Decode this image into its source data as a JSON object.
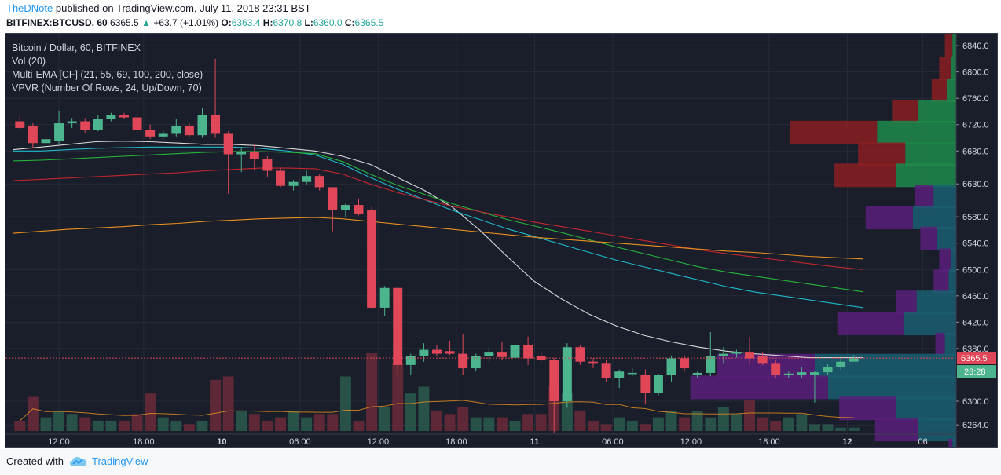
{
  "header": {
    "author": "TheDNote",
    "published_text": "published on TradingView.com, July 11, 2018 23:31 BST",
    "symbol": "BITFINEX:BTCUSD, 60",
    "last": "6365.5",
    "change": "+63.7 (+1.01%)",
    "o_label": "O:",
    "o_val": "6363.4",
    "h_label": "H:",
    "h_val": "6370.8",
    "l_label": "L:",
    "l_val": "6360.0",
    "c_label": "C:",
    "c_val": "6365.5"
  },
  "legend": {
    "title": "Bitcoin / Dollar, 60, BITFINEX",
    "vol": "Vol (20)",
    "ema": "Multi-EMA [CF] (21, 55, 69, 100, 200, close)",
    "vpvr": "VPVR (Number Of Rows, 24, Up/Down, 70)"
  },
  "footer": {
    "created_with": "Created with",
    "brand": "TradingView"
  },
  "colors": {
    "up": "#4db58d",
    "down": "#e0485a",
    "bg": "#1a1e2b",
    "ema21": "#d9d9d9",
    "ema55": "#1fb8c9",
    "ema69": "#28b33a",
    "ema100": "#c4262e",
    "ema200": "#e8901e",
    "price_line": "#e0485a",
    "vpvr_up": "#1e8a4a",
    "vpvr_down": "#8a1e22"
  },
  "chart_data": {
    "type": "candlestick",
    "symbol": "BITFINEX:BTCUSD",
    "interval": "60",
    "y_ticks": [
      "6840.0",
      "6800.0",
      "6760.0",
      "6720.0",
      "6680.0",
      "6630.0",
      "6580.0",
      "6540.0",
      "6500.0",
      "6460.0",
      "6420.0",
      "6380.0",
      "6300.0",
      "6264.0"
    ],
    "x_ticks": [
      "12:00",
      "18:00",
      "10",
      "06:00",
      "12:00",
      "18:00",
      "11",
      "06:00",
      "12:00",
      "18:00",
      "12",
      "06"
    ],
    "last_price_label": "6365.5",
    "countdown_label": "28:28",
    "ylim": [
      6238,
      6858
    ],
    "candles": [
      {
        "o": 6725,
        "h": 6735,
        "l": 6712,
        "c": 6715
      },
      {
        "o": 6718,
        "h": 6722,
        "l": 6685,
        "c": 6692
      },
      {
        "o": 6692,
        "h": 6700,
        "l": 6685,
        "c": 6698
      },
      {
        "o": 6695,
        "h": 6740,
        "l": 6690,
        "c": 6722
      },
      {
        "o": 6722,
        "h": 6730,
        "l": 6715,
        "c": 6725
      },
      {
        "o": 6725,
        "h": 6730,
        "l": 6708,
        "c": 6712
      },
      {
        "o": 6712,
        "h": 6735,
        "l": 6710,
        "c": 6728
      },
      {
        "o": 6728,
        "h": 6738,
        "l": 6725,
        "c": 6735
      },
      {
        "o": 6735,
        "h": 6738,
        "l": 6728,
        "c": 6731
      },
      {
        "o": 6731,
        "h": 6740,
        "l": 6705,
        "c": 6712
      },
      {
        "o": 6712,
        "h": 6720,
        "l": 6698,
        "c": 6702
      },
      {
        "o": 6702,
        "h": 6712,
        "l": 6698,
        "c": 6706
      },
      {
        "o": 6706,
        "h": 6728,
        "l": 6702,
        "c": 6718
      },
      {
        "o": 6718,
        "h": 6722,
        "l": 6700,
        "c": 6704
      },
      {
        "o": 6704,
        "h": 6745,
        "l": 6700,
        "c": 6735
      },
      {
        "o": 6735,
        "h": 6820,
        "l": 6700,
        "c": 6706
      },
      {
        "o": 6706,
        "h": 6710,
        "l": 6615,
        "c": 6675
      },
      {
        "o": 6675,
        "h": 6686,
        "l": 6648,
        "c": 6678
      },
      {
        "o": 6678,
        "h": 6690,
        "l": 6650,
        "c": 6668
      },
      {
        "o": 6668,
        "h": 6672,
        "l": 6640,
        "c": 6650
      },
      {
        "o": 6650,
        "h": 6655,
        "l": 6625,
        "c": 6627
      },
      {
        "o": 6627,
        "h": 6636,
        "l": 6620,
        "c": 6633
      },
      {
        "o": 6633,
        "h": 6650,
        "l": 6628,
        "c": 6642
      },
      {
        "o": 6642,
        "h": 6645,
        "l": 6620,
        "c": 6625
      },
      {
        "o": 6625,
        "h": 6625,
        "l": 6558,
        "c": 6590
      },
      {
        "o": 6590,
        "h": 6600,
        "l": 6580,
        "c": 6598
      },
      {
        "o": 6598,
        "h": 6608,
        "l": 6582,
        "c": 6585
      },
      {
        "o": 6590,
        "h": 6595,
        "l": 6440,
        "c": 6442
      },
      {
        "o": 6442,
        "h": 6475,
        "l": 6430,
        "c": 6472
      },
      {
        "o": 6472,
        "h": 6472,
        "l": 6340,
        "c": 6355
      },
      {
        "o": 6355,
        "h": 6372,
        "l": 6340,
        "c": 6368
      },
      {
        "o": 6368,
        "h": 6388,
        "l": 6360,
        "c": 6378
      },
      {
        "o": 6378,
        "h": 6386,
        "l": 6368,
        "c": 6372
      },
      {
        "o": 6376,
        "h": 6392,
        "l": 6370,
        "c": 6372
      },
      {
        "o": 6372,
        "h": 6402,
        "l": 6340,
        "c": 6350
      },
      {
        "o": 6350,
        "h": 6372,
        "l": 6345,
        "c": 6368
      },
      {
        "o": 6368,
        "h": 6382,
        "l": 6360,
        "c": 6375
      },
      {
        "o": 6375,
        "h": 6390,
        "l": 6362,
        "c": 6367
      },
      {
        "o": 6366,
        "h": 6405,
        "l": 6360,
        "c": 6385
      },
      {
        "o": 6385,
        "h": 6398,
        "l": 6355,
        "c": 6365
      },
      {
        "o": 6368,
        "h": 6375,
        "l": 6358,
        "c": 6362
      },
      {
        "o": 6362,
        "h": 6365,
        "l": 6252,
        "c": 6300
      },
      {
        "o": 6300,
        "h": 6388,
        "l": 6290,
        "c": 6382
      },
      {
        "o": 6382,
        "h": 6385,
        "l": 6355,
        "c": 6360
      },
      {
        "o": 6360,
        "h": 6365,
        "l": 6350,
        "c": 6358
      },
      {
        "o": 6358,
        "h": 6362,
        "l": 6330,
        "c": 6335
      },
      {
        "o": 6335,
        "h": 6348,
        "l": 6320,
        "c": 6345
      },
      {
        "o": 6342,
        "h": 6350,
        "l": 6338,
        "c": 6343
      },
      {
        "o": 6340,
        "h": 6348,
        "l": 6295,
        "c": 6312
      },
      {
        "o": 6312,
        "h": 6342,
        "l": 6308,
        "c": 6340
      },
      {
        "o": 6340,
        "h": 6368,
        "l": 6330,
        "c": 6365
      },
      {
        "o": 6365,
        "h": 6370,
        "l": 6345,
        "c": 6350
      },
      {
        "o": 6340,
        "h": 6345,
        "l": 6335,
        "c": 6343
      },
      {
        "o": 6343,
        "h": 6405,
        "l": 6338,
        "c": 6368
      },
      {
        "o": 6368,
        "h": 6382,
        "l": 6358,
        "c": 6372
      },
      {
        "o": 6372,
        "h": 6378,
        "l": 6366,
        "c": 6375
      },
      {
        "o": 6375,
        "h": 6398,
        "l": 6358,
        "c": 6365
      },
      {
        "o": 6368,
        "h": 6375,
        "l": 6355,
        "c": 6358
      },
      {
        "o": 6358,
        "h": 6362,
        "l": 6335,
        "c": 6340
      },
      {
        "o": 6340,
        "h": 6345,
        "l": 6335,
        "c": 6342
      },
      {
        "o": 6340,
        "h": 6352,
        "l": 6335,
        "c": 6344
      },
      {
        "o": 6340,
        "h": 6346,
        "l": 6298,
        "c": 6344
      },
      {
        "o": 6344,
        "h": 6356,
        "l": 6340,
        "c": 6352
      },
      {
        "o": 6352,
        "h": 6368,
        "l": 6348,
        "c": 6360
      },
      {
        "o": 6360,
        "h": 6370,
        "l": 6360,
        "c": 6365
      }
    ],
    "volume": [
      0.3,
      1.0,
      0.4,
      0.6,
      0.5,
      0.4,
      0.3,
      0.3,
      0.3,
      0.5,
      1.1,
      0.4,
      0.3,
      0.2,
      0.3,
      1.5,
      1.6,
      0.6,
      0.5,
      0.3,
      0.4,
      0.6,
      0.4,
      0.5,
      0.5,
      1.6,
      0.3,
      2.3,
      0.7,
      2.0,
      1.1,
      1.3,
      0.6,
      0.5,
      0.7,
      0.4,
      0.4,
      0.4,
      0.3,
      0.5,
      0.5,
      1.3,
      1.1,
      0.6,
      0.3,
      0.2,
      0.4,
      0.3,
      0.2,
      0.4,
      0.6,
      0.4,
      0.6,
      0.4,
      0.7,
      0.5,
      0.9,
      0.4,
      0.3,
      0.4,
      0.5,
      0.2,
      0.2,
      0.1,
      0.1
    ],
    "ema": [
      {
        "name": "EMA 21",
        "values": [
          6682,
          6686,
          6690,
          6694,
          6695,
          6694,
          6692,
          6690,
          6690,
          6688,
          6684,
          6680,
          6672,
          6660,
          6640,
          6620,
          6595,
          6560,
          6520,
          6482,
          6455,
          6432,
          6414,
          6400,
          6390,
          6382,
          6376,
          6372,
          6369,
          6366,
          6366,
          6366
        ]
      },
      {
        "name": "EMA 55",
        "values": [
          6680,
          6680,
          6682,
          6684,
          6685,
          6686,
          6686,
          6686,
          6686,
          6684,
          6680,
          6674,
          6660,
          6640,
          6622,
          6606,
          6590,
          6576,
          6562,
          6550,
          6538,
          6526,
          6514,
          6504,
          6494,
          6484,
          6474,
          6466,
          6460,
          6454,
          6448,
          6442
        ]
      },
      {
        "name": "EMA 69",
        "values": [
          6665,
          6666,
          6668,
          6670,
          6672,
          6674,
          6676,
          6678,
          6679,
          6679,
          6678,
          6676,
          6664,
          6645,
          6628,
          6614,
          6600,
          6588,
          6576,
          6566,
          6556,
          6545,
          6534,
          6524,
          6514,
          6504,
          6496,
          6490,
          6484,
          6478,
          6472,
          6466
        ]
      },
      {
        "name": "EMA 100",
        "values": [
          6635,
          6637,
          6639,
          6641,
          6643,
          6645,
          6647,
          6650,
          6652,
          6654,
          6654,
          6653,
          6645,
          6630,
          6617,
          6606,
          6596,
          6588,
          6580,
          6572,
          6565,
          6558,
          6551,
          6544,
          6537,
          6530,
          6524,
          6519,
          6514,
          6509,
          6504,
          6500
        ]
      },
      {
        "name": "EMA 200",
        "values": [
          6555,
          6558,
          6561,
          6563,
          6565,
          6568,
          6570,
          6573,
          6575,
          6577,
          6578,
          6579,
          6577,
          6573,
          6569,
          6565,
          6561,
          6557,
          6553,
          6549,
          6546,
          6543,
          6540,
          6537,
          6534,
          6531,
          6528,
          6526,
          6523,
          6520,
          6518,
          6516
        ]
      }
    ],
    "vpvr": [
      {
        "price": 6840,
        "up": 0.02,
        "down": 0.04
      },
      {
        "price": 6805,
        "up": 0.03,
        "down": 0.06
      },
      {
        "price": 6772,
        "up": 0.05,
        "down": 0.08
      },
      {
        "price": 6740,
        "up": 0.2,
        "down": 0.14
      },
      {
        "price": 6708,
        "up": 0.42,
        "down": 0.46
      },
      {
        "price": 6675,
        "up": 0.27,
        "down": 0.25
      },
      {
        "price": 6643,
        "up": 0.32,
        "down": 0.33
      },
      {
        "price": 6611,
        "up": 0.12,
        "down": 0.1
      },
      {
        "price": 6579,
        "up": 0.23,
        "down": 0.25
      },
      {
        "price": 6547,
        "up": 0.1,
        "down": 0.09
      },
      {
        "price": 6514,
        "up": 0.03,
        "down": 0.06
      },
      {
        "price": 6482,
        "up": 0.04,
        "down": 0.08
      },
      {
        "price": 6450,
        "up": 0.21,
        "down": 0.11
      },
      {
        "price": 6418,
        "up": 0.28,
        "down": 0.35
      },
      {
        "price": 6386,
        "up": 0.06,
        "down": 0.05
      },
      {
        "price": 6354,
        "up": 0.75,
        "down": 0.52
      },
      {
        "price": 6321,
        "up": 0.68,
        "down": 0.73
      },
      {
        "price": 6289,
        "up": 0.32,
        "down": 0.3
      },
      {
        "price": 6257,
        "up": 0.2,
        "down": 0.23
      },
      {
        "price": 6225,
        "up": 0.02,
        "down": 0.02
      }
    ]
  }
}
